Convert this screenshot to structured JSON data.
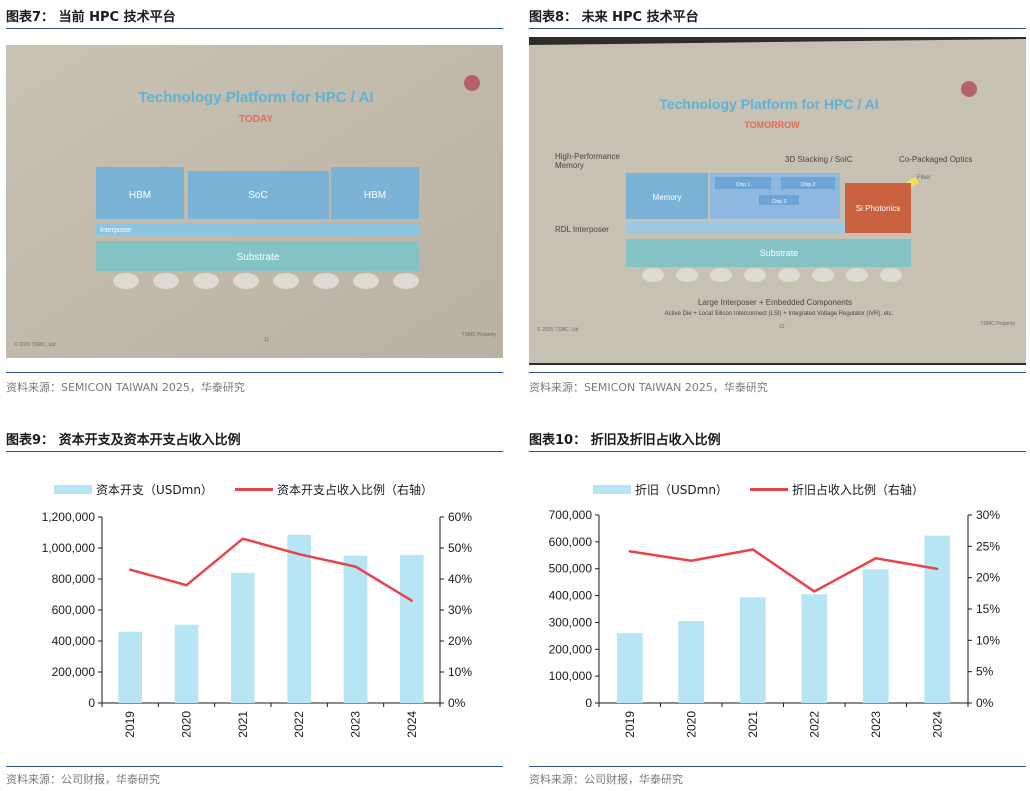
{
  "fig7": {
    "title": "图表7：  当前 HPC 技术平台",
    "source": "资料来源：SEMICON TAIWAN 2025，华泰研究",
    "slide": {
      "heading": "Technology Platform for HPC / AI",
      "subheading": "TODAY",
      "labels": {
        "hbm_left": "HBM",
        "soc": "SoC",
        "hbm_right": "HBM",
        "interposer": "Interposer",
        "substrate": "Substrate"
      },
      "footer_left": "© 2025 TSMC, Ltd",
      "page_no": "11",
      "footer_right": "TSMC Property"
    }
  },
  "fig8": {
    "title": "图表8：  未来 HPC 技术平台",
    "source": "资料来源：SEMICON TAIWAN 2025，华泰研究",
    "slide": {
      "heading": "Technology Platform for HPC / AI",
      "subheading": "TOMORROW",
      "labels": {
        "hpm": "High-Performance\nMemory",
        "stack": "3D Stacking / SoIC",
        "cpo": "Co-Packaged Optics",
        "fiber": "Fiber",
        "memory": "Memory",
        "chip1": "Chip 1",
        "chip2": "Chip 2",
        "chip3": "Chip 3",
        "siph": "Si Photonics",
        "rdl": "RDL Interposer",
        "substrate": "Substrate",
        "large": "Large Interposer + Embedded Components",
        "active": "Active Die + Local Silicon Interconnect (LSI) + Integrated Voltage Regulator (IVR), etc."
      },
      "footer_left": "© 2025 TSMC, Ltd",
      "page_no": "12",
      "footer_right": "TSMC Property"
    }
  },
  "fig9": {
    "title": "图表9：  资本开支及资本开支占收入比例",
    "source": "资料来源：公司财报，华泰研究",
    "legend": {
      "bar": "资本开支（USDmn）",
      "line": "资本开支占收入比例（右轴）"
    },
    "colors": {
      "bar": "#b7e5f3",
      "line": "#e8434b"
    },
    "chart_data": {
      "type": "bar",
      "categories": [
        "2019",
        "2020",
        "2021",
        "2022",
        "2023",
        "2024"
      ],
      "series": [
        {
          "name": "资本开支（USDmn）",
          "type": "bar",
          "axis": "left",
          "values": [
            460000,
            505000,
            840000,
            1085000,
            950000,
            955000
          ]
        },
        {
          "name": "资本开支占收入比例（右轴）",
          "type": "line",
          "axis": "right",
          "values": [
            0.43,
            0.38,
            0.53,
            0.48,
            0.44,
            0.33
          ]
        }
      ],
      "ylim": [
        0,
        1200000
      ],
      "y2lim": [
        0,
        0.6
      ],
      "yticks": [
        "0",
        "200,000",
        "400,000",
        "600,000",
        "800,000",
        "1,000,000",
        "1,200,000"
      ],
      "y2ticks": [
        "0%",
        "10%",
        "20%",
        "30%",
        "40%",
        "50%",
        "60%"
      ],
      "legend_position": "top"
    }
  },
  "fig10": {
    "title": "图表10：  折旧及折旧占收入比例",
    "source": "资料来源：公司财报，华泰研究",
    "legend": {
      "bar": "折旧（USDmn）",
      "line": "折旧占收入比例（右轴）"
    },
    "colors": {
      "bar": "#b7e5f3",
      "line": "#e8434b"
    },
    "chart_data": {
      "type": "bar",
      "categories": [
        "2019",
        "2020",
        "2021",
        "2022",
        "2023",
        "2024"
      ],
      "series": [
        {
          "name": "折旧（USDmn）",
          "type": "bar",
          "axis": "left",
          "values": [
            260000,
            305000,
            393000,
            405000,
            498000,
            623000
          ]
        },
        {
          "name": "折旧占收入比例（右轴）",
          "type": "line",
          "axis": "right",
          "values": [
            0.242,
            0.227,
            0.245,
            0.178,
            0.231,
            0.214
          ]
        }
      ],
      "ylim": [
        0,
        700000
      ],
      "y2lim": [
        0,
        0.3
      ],
      "yticks": [
        "0",
        "100,000",
        "200,000",
        "300,000",
        "400,000",
        "500,000",
        "600,000",
        "700,000"
      ],
      "y2ticks": [
        "0%",
        "5%",
        "10%",
        "15%",
        "20%",
        "25%",
        "30%"
      ],
      "legend_position": "top"
    }
  }
}
